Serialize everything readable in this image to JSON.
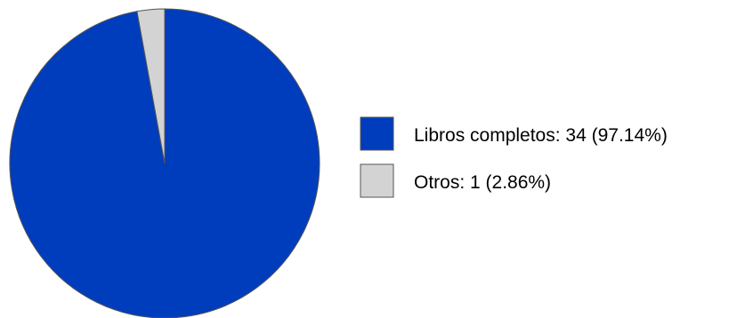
{
  "chart_data": {
    "type": "pie",
    "slices": [
      {
        "label": "Libros completos",
        "value": 34,
        "percent": 97.14,
        "color": "#003dbd",
        "legend_text": "Libros completos: 34 (97.14%)"
      },
      {
        "label": "Otros",
        "value": 1,
        "percent": 2.86,
        "color": "#d3d3d3",
        "legend_text": "Otros: 1 (2.86%)"
      }
    ],
    "start_angle_deg": 0,
    "direction": "clockwise",
    "legend_position": "right",
    "slice_border_color": "#555555"
  }
}
